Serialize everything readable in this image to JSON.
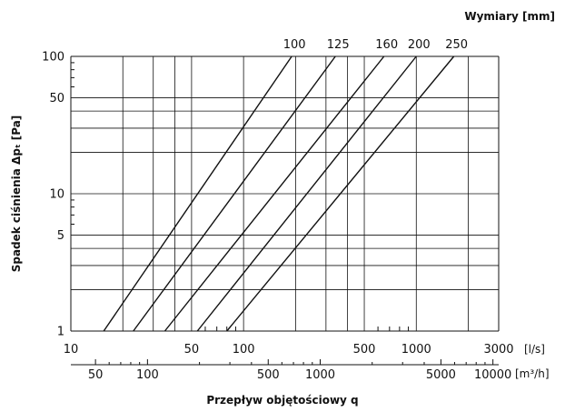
{
  "chart_data": {
    "type": "line",
    "title": "Wymiary [mm]",
    "xlabel": "Przepływ objętościowy q",
    "ylabel": "Spadek ciśnienia Δpₜ [Pa]",
    "x_scale": "log",
    "y_scale": "log",
    "xlim": [
      10,
      3000
    ],
    "ylim": [
      1,
      100
    ],
    "x_unit": "[l/s]",
    "x2_unit": "[m³/h]",
    "grid": true,
    "x_tick_labels": [
      "10",
      "50",
      "100",
      "500",
      "1000",
      "3000"
    ],
    "x2_tick_labels": [
      "50",
      "100",
      "500",
      "1000",
      "5000",
      "10000"
    ],
    "y_tick_labels": [
      "1",
      "5",
      "10",
      "50",
      "100"
    ],
    "series": [
      {
        "name": "100",
        "x": [
          15.5,
          190
        ],
        "y": [
          1,
          100
        ]
      },
      {
        "name": "125",
        "x": [
          23,
          340
        ],
        "y": [
          1,
          100
        ]
      },
      {
        "name": "160",
        "x": [
          35,
          650
        ],
        "y": [
          1,
          100
        ]
      },
      {
        "name": "200",
        "x": [
          54,
          1000
        ],
        "y": [
          1,
          100
        ]
      },
      {
        "name": "250",
        "x": [
          80,
          1650
        ],
        "y": [
          1,
          100
        ]
      }
    ]
  }
}
